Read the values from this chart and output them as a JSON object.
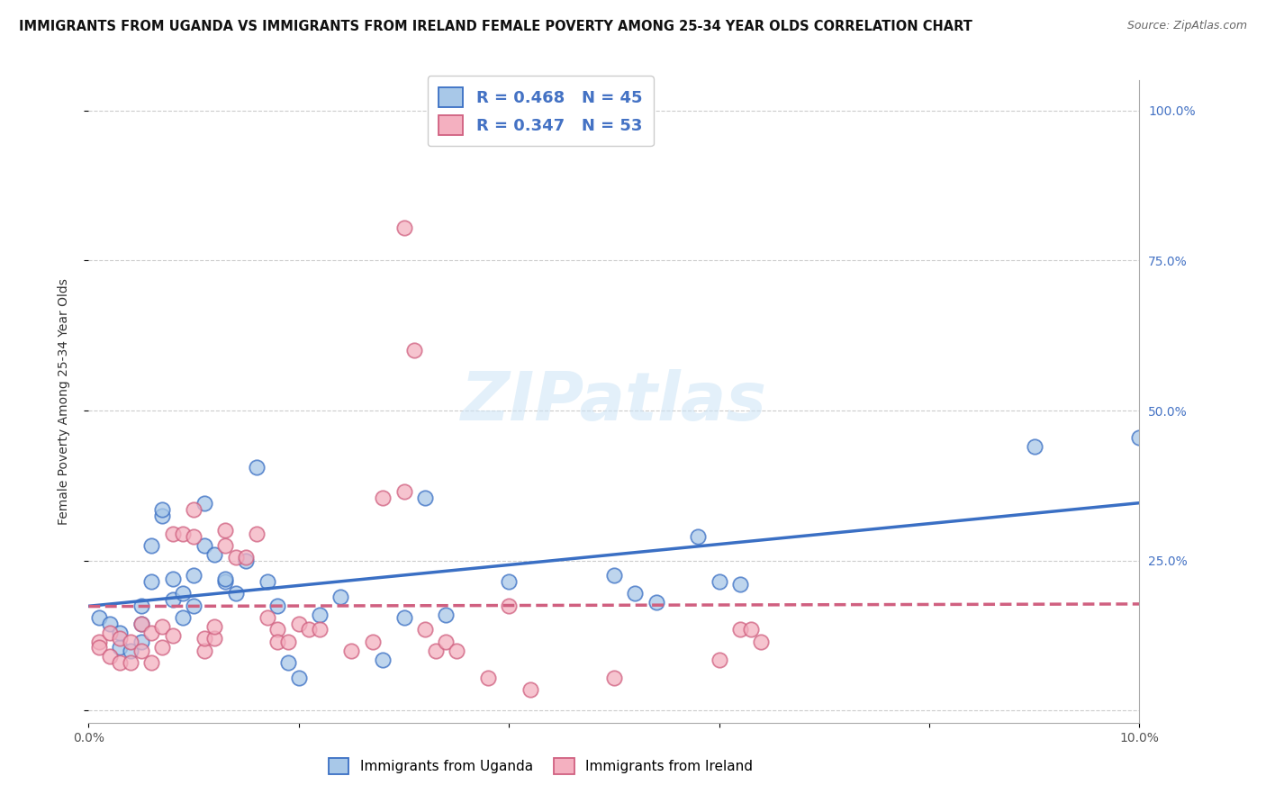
{
  "title": "IMMIGRANTS FROM UGANDA VS IMMIGRANTS FROM IRELAND FEMALE POVERTY AMONG 25-34 YEAR OLDS CORRELATION CHART",
  "source": "Source: ZipAtlas.com",
  "ylabel": "Female Poverty Among 25-34 Year Olds",
  "xlim": [
    0.0,
    0.1
  ],
  "ylim": [
    -0.02,
    1.05
  ],
  "xticks": [
    0.0,
    0.02,
    0.04,
    0.06,
    0.08,
    0.1
  ],
  "yticks": [
    0.0,
    0.25,
    0.5,
    0.75,
    1.0
  ],
  "uganda_color": "#a8c8e8",
  "ireland_color": "#f4b0c0",
  "uganda_R": 0.468,
  "uganda_N": 45,
  "ireland_R": 0.347,
  "ireland_N": 53,
  "watermark": "ZIPatlas",
  "uganda_line_color": "#3a6fc4",
  "ireland_line_color": "#d06080",
  "right_tick_color": "#4472c4",
  "uganda_scatter": [
    [
      0.001,
      0.155
    ],
    [
      0.002,
      0.145
    ],
    [
      0.003,
      0.105
    ],
    [
      0.003,
      0.13
    ],
    [
      0.004,
      0.1
    ],
    [
      0.005,
      0.175
    ],
    [
      0.005,
      0.145
    ],
    [
      0.005,
      0.115
    ],
    [
      0.006,
      0.215
    ],
    [
      0.006,
      0.275
    ],
    [
      0.007,
      0.325
    ],
    [
      0.007,
      0.335
    ],
    [
      0.008,
      0.185
    ],
    [
      0.008,
      0.22
    ],
    [
      0.009,
      0.195
    ],
    [
      0.009,
      0.155
    ],
    [
      0.01,
      0.225
    ],
    [
      0.01,
      0.175
    ],
    [
      0.011,
      0.345
    ],
    [
      0.011,
      0.275
    ],
    [
      0.012,
      0.26
    ],
    [
      0.013,
      0.215
    ],
    [
      0.013,
      0.22
    ],
    [
      0.014,
      0.195
    ],
    [
      0.015,
      0.25
    ],
    [
      0.016,
      0.405
    ],
    [
      0.017,
      0.215
    ],
    [
      0.018,
      0.175
    ],
    [
      0.019,
      0.08
    ],
    [
      0.02,
      0.055
    ],
    [
      0.022,
      0.16
    ],
    [
      0.024,
      0.19
    ],
    [
      0.028,
      0.085
    ],
    [
      0.03,
      0.155
    ],
    [
      0.032,
      0.355
    ],
    [
      0.034,
      0.16
    ],
    [
      0.04,
      0.215
    ],
    [
      0.05,
      0.225
    ],
    [
      0.052,
      0.195
    ],
    [
      0.054,
      0.18
    ],
    [
      0.058,
      0.29
    ],
    [
      0.06,
      0.215
    ],
    [
      0.062,
      0.21
    ],
    [
      0.09,
      0.44
    ],
    [
      0.1,
      0.455
    ]
  ],
  "ireland_scatter": [
    [
      0.001,
      0.115
    ],
    [
      0.001,
      0.105
    ],
    [
      0.002,
      0.13
    ],
    [
      0.002,
      0.09
    ],
    [
      0.003,
      0.08
    ],
    [
      0.003,
      0.12
    ],
    [
      0.004,
      0.115
    ],
    [
      0.004,
      0.08
    ],
    [
      0.005,
      0.145
    ],
    [
      0.005,
      0.1
    ],
    [
      0.006,
      0.13
    ],
    [
      0.006,
      0.08
    ],
    [
      0.007,
      0.105
    ],
    [
      0.007,
      0.14
    ],
    [
      0.008,
      0.125
    ],
    [
      0.008,
      0.295
    ],
    [
      0.009,
      0.295
    ],
    [
      0.01,
      0.335
    ],
    [
      0.01,
      0.29
    ],
    [
      0.011,
      0.1
    ],
    [
      0.011,
      0.12
    ],
    [
      0.012,
      0.12
    ],
    [
      0.012,
      0.14
    ],
    [
      0.013,
      0.3
    ],
    [
      0.013,
      0.275
    ],
    [
      0.014,
      0.255
    ],
    [
      0.015,
      0.255
    ],
    [
      0.016,
      0.295
    ],
    [
      0.017,
      0.155
    ],
    [
      0.018,
      0.135
    ],
    [
      0.018,
      0.115
    ],
    [
      0.019,
      0.115
    ],
    [
      0.02,
      0.145
    ],
    [
      0.021,
      0.135
    ],
    [
      0.022,
      0.135
    ],
    [
      0.025,
      0.1
    ],
    [
      0.027,
      0.115
    ],
    [
      0.028,
      0.355
    ],
    [
      0.03,
      0.365
    ],
    [
      0.031,
      0.6
    ],
    [
      0.032,
      0.135
    ],
    [
      0.033,
      0.1
    ],
    [
      0.034,
      0.115
    ],
    [
      0.035,
      0.1
    ],
    [
      0.038,
      0.055
    ],
    [
      0.04,
      0.175
    ],
    [
      0.042,
      0.035
    ],
    [
      0.05,
      0.055
    ],
    [
      0.06,
      0.085
    ],
    [
      0.062,
      0.135
    ],
    [
      0.063,
      0.135
    ],
    [
      0.064,
      0.115
    ],
    [
      0.03,
      0.805
    ]
  ]
}
